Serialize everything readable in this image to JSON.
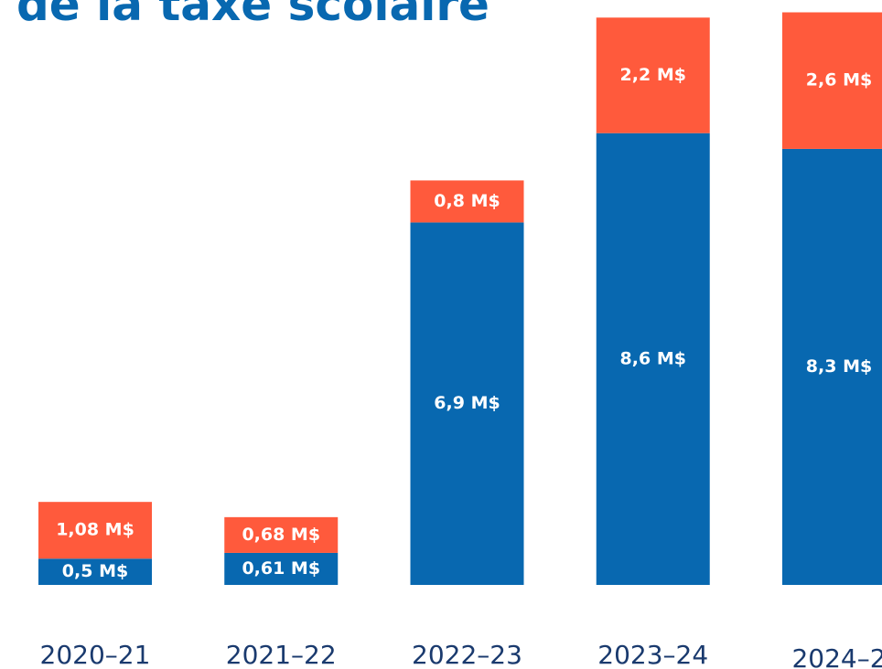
{
  "chart_data": {
    "type": "stacked_bar",
    "title": "de la taxe scolaire",
    "categories": [
      "2020–21",
      "2021–22",
      "2022–23",
      "2023–24",
      "2024–2"
    ],
    "series": [
      {
        "color": "#0868b0",
        "values": [
          0.5,
          0.61,
          6.9,
          8.6,
          8.3
        ],
        "value_labels": [
          "0,5 M$",
          "0,61 M$",
          "6,9 M$",
          "8,6 M$",
          "8,3 M$"
        ]
      },
      {
        "color": "#ff5a3c",
        "values": [
          1.08,
          0.68,
          0.8,
          2.2,
          2.6
        ],
        "value_labels": [
          "1,08 M$",
          "0,68 M$",
          "0,8 M$",
          "2,2 M$",
          "2,6 M$"
        ]
      }
    ],
    "ylim": [
      0,
      11.1
    ]
  }
}
